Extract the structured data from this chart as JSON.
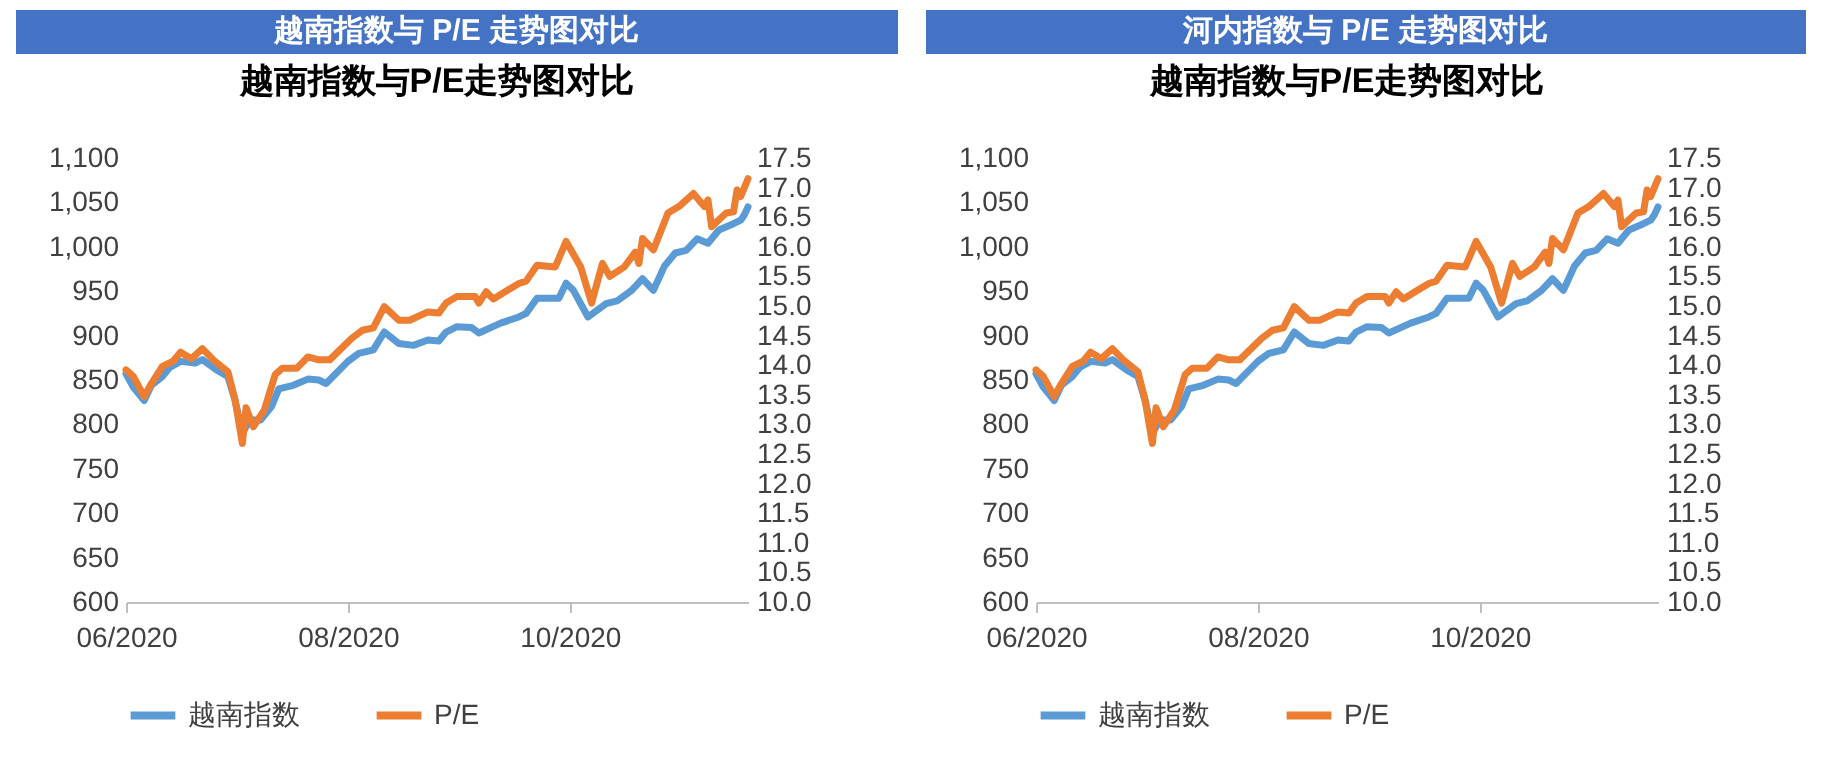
{
  "chart_data": [
    {
      "type": "line",
      "title": "越南指数与 P/E 走势图对比",
      "subtitle": "越南指数与P/E走势图对比",
      "legend": "bottom",
      "line_style": "solid",
      "xlim": [
        "2020-06-01",
        "2020-11-19"
      ],
      "xticks": [
        {
          "value": "2020-06-01",
          "label": "06/2020"
        },
        {
          "value": "2020-08-01",
          "label": "08/2020"
        },
        {
          "value": "2020-10-01",
          "label": "10/2020"
        }
      ],
      "ylim": [
        600,
        1100
      ],
      "yticks": [
        600,
        650,
        700,
        750,
        800,
        850,
        900,
        950,
        {
          "value": 1000,
          "label": "1,000"
        },
        {
          "value": 1050,
          "label": "1,050"
        },
        {
          "value": 1100,
          "label": "1,100"
        }
      ],
      "y2lim": [
        10,
        17.5
      ],
      "y2ticks": [
        {
          "value": 10,
          "label": "10.0"
        },
        10.5,
        {
          "value": 11,
          "label": "11.0"
        },
        11.5,
        {
          "value": 12,
          "label": "12.0"
        },
        12.5,
        {
          "value": 13,
          "label": "13.0"
        },
        13.5,
        {
          "value": 14,
          "label": "14.0"
        },
        14.5,
        {
          "value": 15,
          "label": "15.0"
        },
        15.5,
        {
          "value": 16,
          "label": "16.0"
        },
        16.5,
        {
          "value": 17,
          "label": "17.0"
        },
        17.5
      ],
      "series": [
        {
          "name": "越南指数",
          "color": "#5b9bd5",
          "x": [
            "2020-06-01",
            "2020-06-03",
            "2020-06-06",
            "2020-06-08",
            "2020-06-11",
            "2020-06-13",
            "2020-06-16",
            "2020-06-20",
            "2020-06-22",
            "2020-06-26",
            "2020-06-29",
            "2020-07-01",
            "2020-07-03",
            "2020-07-05",
            "2020-07-08",
            "2020-07-11",
            "2020-07-13",
            "2020-07-17",
            "2020-07-21",
            "2020-07-24",
            "2020-07-26",
            "2020-08-01",
            "2020-08-04",
            "2020-08-08",
            "2020-08-11",
            "2020-08-15",
            "2020-08-19",
            "2020-08-23",
            "2020-08-26",
            "2020-08-28",
            "2020-08-31",
            "2020-09-04",
            "2020-09-05",
            "2020-09-06",
            "2020-09-12",
            "2020-09-17",
            "2020-09-19",
            "2020-09-22",
            "2020-09-28",
            "2020-09-30",
            "2020-10-02",
            "2020-10-06",
            "2020-10-11",
            "2020-10-14",
            "2020-10-18",
            "2020-10-21",
            "2020-10-24",
            "2020-10-27",
            "2020-10-30",
            "2020-11-02",
            "2020-11-05",
            "2020-11-08",
            "2020-11-11",
            "2020-11-15",
            "2020-11-17",
            "2020-11-18",
            "2020-11-19"
          ],
          "values": [
            857,
            842,
            827,
            844,
            854,
            864,
            871,
            869,
            873,
            861,
            854,
            827,
            790,
            805,
            805,
            820,
            840,
            844,
            851,
            850,
            846,
            871,
            880,
            884,
            904,
            891,
            889,
            895,
            894,
            904,
            910,
            909,
            906,
            903,
            914,
            921,
            925,
            942,
            942,
            959,
            951,
            921,
            936,
            939,
            951,
            964,
            951,
            978,
            993,
            996,
            1009,
            1004,
            1019,
            1026,
            1030,
            1036,
            1045
          ]
        },
        {
          "name": "P/E",
          "color": "#ed7d31",
          "axis": "y2",
          "x": [
            "2020-06-01",
            "2020-06-03",
            "2020-06-06",
            "2020-06-08",
            "2020-06-11",
            "2020-06-14",
            "2020-06-16",
            "2020-06-19",
            "2020-06-22",
            "2020-06-25",
            "2020-06-29",
            "2020-07-01",
            "2020-07-03",
            "2020-07-04",
            "2020-07-06",
            "2020-07-09",
            "2020-07-12",
            "2020-07-14",
            "2020-07-18",
            "2020-07-21",
            "2020-07-24",
            "2020-07-27",
            "2020-08-02",
            "2020-08-05",
            "2020-08-08",
            "2020-08-11",
            "2020-08-15",
            "2020-08-18",
            "2020-08-23",
            "2020-08-26",
            "2020-08-28",
            "2020-08-31",
            "2020-09-05",
            "2020-09-06",
            "2020-09-08",
            "2020-09-10",
            "2020-09-14",
            "2020-09-17",
            "2020-09-19",
            "2020-09-22",
            "2020-09-27",
            "2020-09-30",
            "2020-10-04",
            "2020-10-07",
            "2020-10-10",
            "2020-10-12",
            "2020-10-16",
            "2020-10-19",
            "2020-10-20",
            "2020-10-21",
            "2020-10-24",
            "2020-10-28",
            "2020-10-31",
            "2020-11-04",
            "2020-11-07",
            "2020-11-08",
            "2020-11-09",
            "2020-11-13",
            "2020-11-15",
            "2020-11-16",
            "2020-11-17",
            "2020-11-19"
          ],
          "values": [
            13.92,
            13.81,
            13.47,
            13.69,
            13.98,
            14.07,
            14.22,
            14.11,
            14.28,
            14.09,
            13.89,
            13.41,
            12.68,
            13.28,
            12.96,
            13.24,
            13.84,
            13.95,
            13.95,
            14.14,
            14.09,
            14.09,
            14.45,
            14.59,
            14.63,
            14.99,
            14.76,
            14.76,
            14.9,
            14.88,
            15.05,
            15.16,
            15.16,
            15.05,
            15.24,
            15.12,
            15.27,
            15.38,
            15.42,
            15.69,
            15.66,
            16.09,
            15.66,
            15.05,
            15.72,
            15.5,
            15.66,
            15.91,
            15.72,
            16.14,
            15.95,
            16.57,
            16.68,
            16.9,
            16.68,
            16.79,
            16.34,
            16.57,
            16.59,
            16.96,
            16.85,
            17.15
          ]
        }
      ]
    },
    {
      "type": "line",
      "title": "河内指数与 P/E 走势图对比",
      "subtitle": "越南指数与P/E走势图对比",
      "legend": "bottom",
      "line_style": "solid",
      "xlim": [
        "2020-06-01",
        "2020-11-19"
      ],
      "xticks": [
        {
          "value": "2020-06-01",
          "label": "06/2020"
        },
        {
          "value": "2020-08-01",
          "label": "08/2020"
        },
        {
          "value": "2020-10-01",
          "label": "10/2020"
        }
      ],
      "ylim": [
        600,
        1100
      ],
      "yticks": [
        600,
        650,
        700,
        750,
        800,
        850,
        900,
        950,
        {
          "value": 1000,
          "label": "1,000"
        },
        {
          "value": 1050,
          "label": "1,050"
        },
        {
          "value": 1100,
          "label": "1,100"
        }
      ],
      "y2lim": [
        10,
        17.5
      ],
      "y2ticks": [
        {
          "value": 10,
          "label": "10.0"
        },
        10.5,
        {
          "value": 11,
          "label": "11.0"
        },
        11.5,
        {
          "value": 12,
          "label": "12.0"
        },
        12.5,
        {
          "value": 13,
          "label": "13.0"
        },
        13.5,
        {
          "value": 14,
          "label": "14.0"
        },
        14.5,
        {
          "value": 15,
          "label": "15.0"
        },
        15.5,
        {
          "value": 16,
          "label": "16.0"
        },
        16.5,
        {
          "value": 17,
          "label": "17.0"
        },
        17.5
      ],
      "series": [
        {
          "name": "越南指数",
          "color": "#5b9bd5",
          "x": [
            "2020-06-01",
            "2020-06-03",
            "2020-06-06",
            "2020-06-08",
            "2020-06-11",
            "2020-06-13",
            "2020-06-16",
            "2020-06-20",
            "2020-06-22",
            "2020-06-26",
            "2020-06-29",
            "2020-07-01",
            "2020-07-03",
            "2020-07-05",
            "2020-07-08",
            "2020-07-11",
            "2020-07-13",
            "2020-07-17",
            "2020-07-21",
            "2020-07-24",
            "2020-07-26",
            "2020-08-01",
            "2020-08-04",
            "2020-08-08",
            "2020-08-11",
            "2020-08-15",
            "2020-08-19",
            "2020-08-23",
            "2020-08-26",
            "2020-08-28",
            "2020-08-31",
            "2020-09-04",
            "2020-09-05",
            "2020-09-06",
            "2020-09-12",
            "2020-09-17",
            "2020-09-19",
            "2020-09-22",
            "2020-09-28",
            "2020-09-30",
            "2020-10-02",
            "2020-10-06",
            "2020-10-11",
            "2020-10-14",
            "2020-10-18",
            "2020-10-21",
            "2020-10-24",
            "2020-10-27",
            "2020-10-30",
            "2020-11-02",
            "2020-11-05",
            "2020-11-08",
            "2020-11-11",
            "2020-11-15",
            "2020-11-17",
            "2020-11-18",
            "2020-11-19"
          ],
          "values": [
            857,
            842,
            827,
            844,
            854,
            864,
            871,
            869,
            873,
            861,
            854,
            827,
            790,
            805,
            805,
            820,
            840,
            844,
            851,
            850,
            846,
            871,
            880,
            884,
            904,
            891,
            889,
            895,
            894,
            904,
            910,
            909,
            906,
            903,
            914,
            921,
            925,
            942,
            942,
            959,
            951,
            921,
            936,
            939,
            951,
            964,
            951,
            978,
            993,
            996,
            1009,
            1004,
            1019,
            1026,
            1030,
            1036,
            1045
          ]
        },
        {
          "name": "P/E",
          "color": "#ed7d31",
          "axis": "y2",
          "x": [
            "2020-06-01",
            "2020-06-03",
            "2020-06-06",
            "2020-06-08",
            "2020-06-11",
            "2020-06-14",
            "2020-06-16",
            "2020-06-19",
            "2020-06-22",
            "2020-06-25",
            "2020-06-29",
            "2020-07-01",
            "2020-07-03",
            "2020-07-04",
            "2020-07-06",
            "2020-07-09",
            "2020-07-12",
            "2020-07-14",
            "2020-07-18",
            "2020-07-21",
            "2020-07-24",
            "2020-07-27",
            "2020-08-02",
            "2020-08-05",
            "2020-08-08",
            "2020-08-11",
            "2020-08-15",
            "2020-08-18",
            "2020-08-23",
            "2020-08-26",
            "2020-08-28",
            "2020-08-31",
            "2020-09-05",
            "2020-09-06",
            "2020-09-08",
            "2020-09-10",
            "2020-09-14",
            "2020-09-17",
            "2020-09-19",
            "2020-09-22",
            "2020-09-27",
            "2020-09-30",
            "2020-10-04",
            "2020-10-07",
            "2020-10-10",
            "2020-10-12",
            "2020-10-16",
            "2020-10-19",
            "2020-10-20",
            "2020-10-21",
            "2020-10-24",
            "2020-10-28",
            "2020-10-31",
            "2020-11-04",
            "2020-11-07",
            "2020-11-08",
            "2020-11-09",
            "2020-11-13",
            "2020-11-15",
            "2020-11-16",
            "2020-11-17",
            "2020-11-19"
          ],
          "values": [
            13.92,
            13.81,
            13.47,
            13.69,
            13.98,
            14.07,
            14.22,
            14.11,
            14.28,
            14.09,
            13.89,
            13.41,
            12.68,
            13.28,
            12.96,
            13.24,
            13.84,
            13.95,
            13.95,
            14.14,
            14.09,
            14.09,
            14.45,
            14.59,
            14.63,
            14.99,
            14.76,
            14.76,
            14.9,
            14.88,
            15.05,
            15.16,
            15.16,
            15.05,
            15.24,
            15.12,
            15.27,
            15.38,
            15.42,
            15.69,
            15.66,
            16.09,
            15.66,
            15.05,
            15.72,
            15.5,
            15.66,
            15.91,
            15.72,
            16.14,
            15.95,
            16.57,
            16.68,
            16.9,
            16.68,
            16.79,
            16.34,
            16.57,
            16.59,
            16.96,
            16.85,
            17.15
          ]
        }
      ]
    }
  ]
}
